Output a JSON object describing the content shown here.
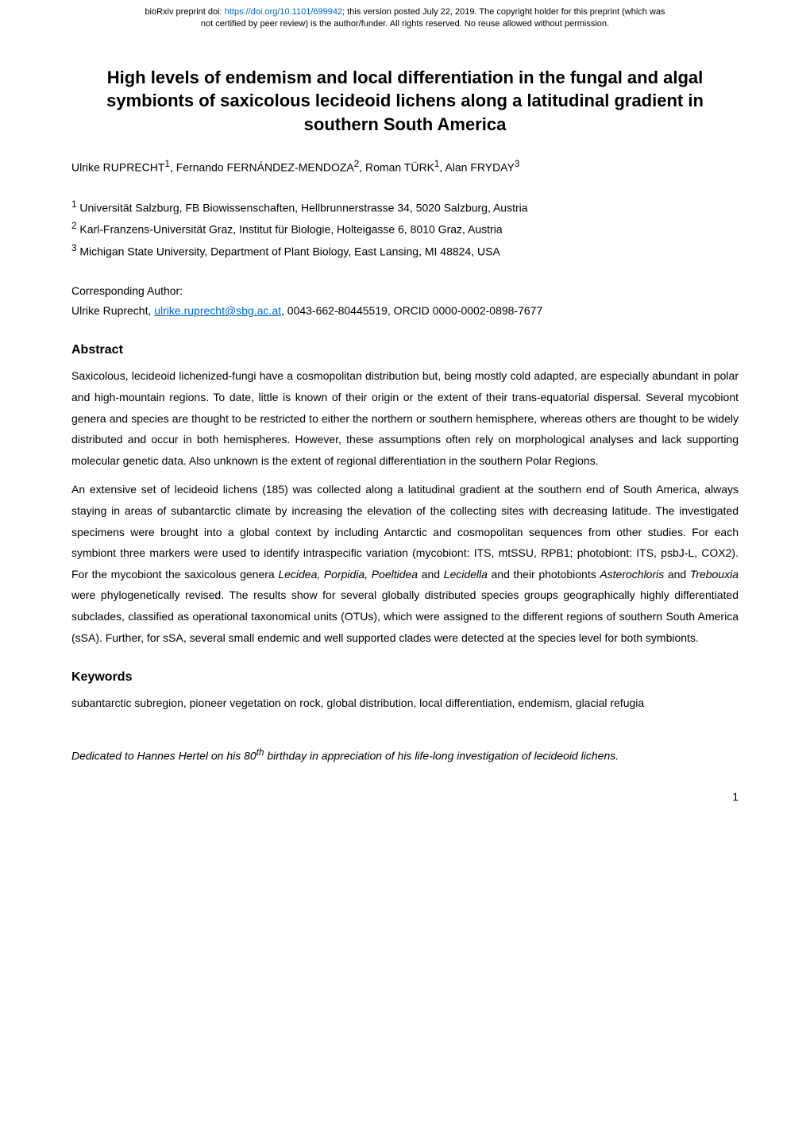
{
  "banner": {
    "line1_prefix": "bioRxiv preprint doi: ",
    "doi_link": "https://doi.org/10.1101/699942",
    "line1_suffix": "; this version posted July 22, 2019. The copyright holder for this preprint (which was",
    "line2": "not certified by peer review) is the author/funder. All rights reserved. No reuse allowed without permission."
  },
  "title": "High levels of endemism and local differentiation in the fungal and algal symbionts of saxicolous lecideoid lichens along a latitudinal gradient in southern South America",
  "authors_html": "Ulrike RUPRECHT<sup>1</sup>, Fernando FERNÁNDEZ-MENDOZA<sup>2</sup>, Roman TÜRK<sup>1</sup>, Alan FRYDAY<sup>3</sup>",
  "affiliations": [
    "<sup>1</sup> Universität Salzburg, FB Biowissenschaften, Hellbrunnerstrasse 34, 5020 Salzburg, Austria",
    "<sup>2</sup> Karl-Franzens-Universität Graz, Institut für Biologie, Holteigasse 6, 8010 Graz, Austria",
    "<sup>3</sup> Michigan State University, Department of Plant Biology, East Lansing, MI 48824, USA"
  ],
  "corresponding": {
    "label": "Corresponding Author:",
    "text_prefix": "Ulrike Ruprecht, ",
    "email": "ulrike.ruprecht@sbg.ac.at",
    "text_suffix": ", 0043-662-80445519, ORCID 0000-0002-0898-7677"
  },
  "abstract": {
    "heading": "Abstract",
    "para1": "Saxicolous, lecideoid lichenized-fungi have a cosmopolitan distribution but, being mostly cold adapted, are especially abundant in polar and high-mountain regions. To date, little is known of their origin or the extent of their trans-equatorial dispersal. Several mycobiont genera and species are thought to be restricted to either the northern or southern hemisphere, whereas others are thought to be widely distributed and occur in both hemispheres. However, these assumptions often rely on morphological analyses and lack supporting molecular genetic data. Also unknown is the extent of regional differentiation in the southern Polar Regions.",
    "para2_html": "An extensive set of lecideoid lichens (185) was collected along a latitudinal gradient at the southern end of South America, always staying in areas of subantarctic climate by increasing the elevation of the collecting sites with decreasing latitude. The investigated specimens were brought into a global context by including Antarctic and cosmopolitan sequences from other studies. For each symbiont three markers were used to identify intraspecific variation (mycobiont: ITS, mtSSU, RPB1; photobiont: ITS, psbJ-L, COX2). For the mycobiont the saxicolous genera <span class=\"italic\">Lecidea, Porpidia, Poeltidea</span> and <span class=\"italic\">Lecidella</span> and their photobionts <span class=\"italic\">Asterochloris</span> and <span class=\"italic\">Trebouxia</span> were phylogenetically revised. The results show for several globally distributed species groups geographically highly differentiated subclades, classified as operational taxonomical units (OTUs), which were assigned to the different regions of southern South America (sSA). Further, for sSA, several small endemic and well supported clades were detected at the species level for both symbionts."
  },
  "keywords": {
    "heading": "Keywords",
    "text": "subantarctic subregion, pioneer vegetation on rock, global distribution, local differentiation, endemism, glacial refugia"
  },
  "dedication_html": "Dedicated to Hannes Hertel on his 80<sup>th</sup> birthday in appreciation of his life-long investigation of lecideoid lichens.",
  "page_number": "1",
  "colors": {
    "link": "#0066cc",
    "text": "#000000",
    "background": "#ffffff"
  }
}
